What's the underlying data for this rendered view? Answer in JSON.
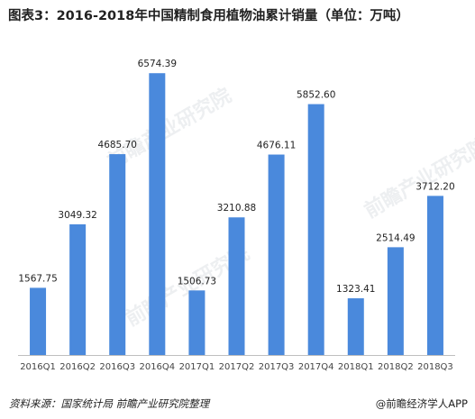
{
  "chart_data": {
    "type": "bar",
    "title": "图表3：2016-2018年中国精制食用植物油累计销量（单位：万吨）",
    "categories": [
      "2016Q1",
      "2016Q2",
      "2016Q3",
      "2016Q4",
      "2017Q1",
      "2017Q2",
      "2017Q3",
      "2017Q4",
      "2018Q1",
      "2018Q2",
      "2018Q3"
    ],
    "values": [
      1567.75,
      3049.32,
      4685.7,
      6574.39,
      1506.73,
      3210.88,
      4676.11,
      5852.6,
      1323.41,
      2514.49,
      3712.2
    ],
    "value_labels": [
      "1567.75",
      "3049.32",
      "4685.70",
      "6574.39",
      "1506.73",
      "3210.88",
      "4676.11",
      "5852.60",
      "1323.41",
      "2514.49",
      "3712.20"
    ],
    "xlabel": "",
    "ylabel": "",
    "ylim": [
      0,
      6600
    ],
    "grid": false,
    "legend": "none",
    "colors": {
      "bar": "#4a89dc",
      "axis": "#bfbfbf"
    }
  },
  "footer": {
    "source": "资料来源：国家统计局 前瞻产业研究院整理",
    "brand": "@前瞻经济学人APP"
  },
  "watermark": {
    "text": "前瞻产业研究院"
  }
}
